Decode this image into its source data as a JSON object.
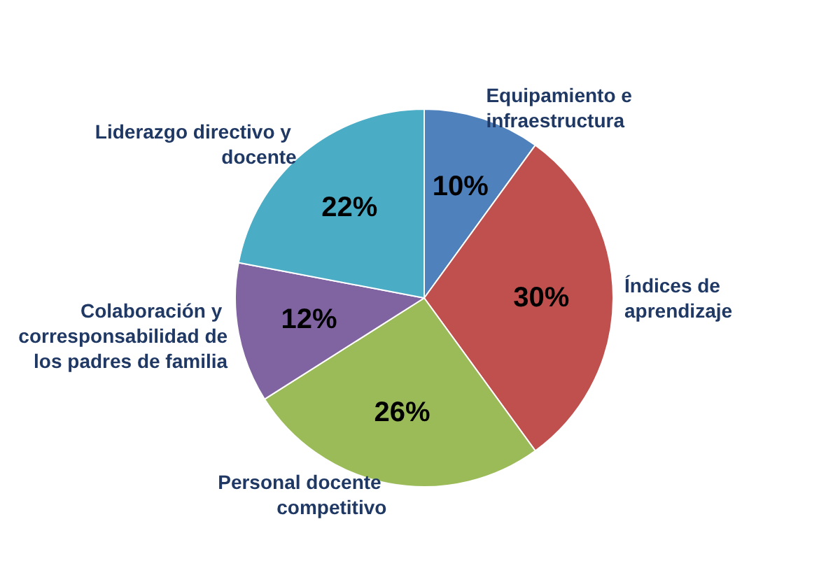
{
  "chart_data": {
    "type": "pie",
    "categories": [
      "Equipamiento e infraestructura",
      "Índices de aprendizaje",
      "Personal docente competitivo",
      "Colaboración y corresponsabilidad de los padres de familia",
      "Liderazgo directivo y docente"
    ],
    "values": [
      10,
      30,
      26,
      12,
      22
    ],
    "colors": [
      "#4f81bd",
      "#c0504d",
      "#9bbb59",
      "#8064a2",
      "#4bacc6"
    ],
    "value_labels": [
      "10%",
      "30%",
      "26%",
      "12%",
      "22%"
    ],
    "legend": false
  }
}
